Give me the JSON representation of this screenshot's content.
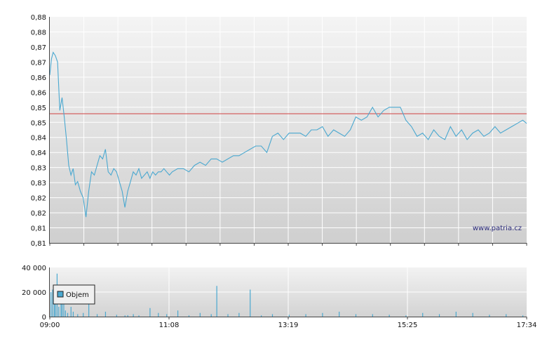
{
  "watermark": "www.patria.cz",
  "chart_data": [
    {
      "type": "line",
      "title": "",
      "xlabel": "",
      "ylabel": "",
      "ylim": [
        0.81,
        0.88
      ],
      "y_tick_labels": [
        "0,88",
        "0,88",
        "0,87",
        "0,87",
        "0,86",
        "0,86",
        "0,85",
        "0,85",
        "0,84",
        "0,84",
        "0,83",
        "0,83",
        "0,82",
        "0,82",
        "0,81",
        "0,81"
      ],
      "reference_line": {
        "value": 0.85,
        "color": "#d04040"
      },
      "grid": true,
      "series": [
        {
          "color": "#4aa8d0",
          "x": [
            0,
            0.03,
            0.06,
            0.1,
            0.14,
            0.18,
            0.22,
            0.26,
            0.3,
            0.34,
            0.38,
            0.42,
            0.46,
            0.5,
            0.55,
            0.6,
            0.65,
            0.7,
            0.75,
            0.8,
            0.85,
            0.9,
            0.95,
            1.0,
            1.05,
            1.1,
            1.15,
            1.2,
            1.25,
            1.3,
            1.35,
            1.4,
            1.45,
            1.5,
            1.55,
            1.6,
            1.65,
            1.7,
            1.75,
            1.8,
            1.85,
            1.9,
            1.95,
            2.0,
            2.05,
            2.1,
            2.15,
            2.2,
            2.3,
            2.4,
            2.5,
            2.6,
            2.7,
            2.8,
            2.9,
            3.0,
            3.1,
            3.2,
            3.3,
            3.4,
            3.5,
            3.6,
            3.7,
            3.8,
            3.9,
            4.0,
            4.1,
            4.2,
            4.3,
            4.4,
            4.5,
            4.6,
            4.7,
            4.8,
            4.9,
            5.0,
            5.1,
            5.2,
            5.3,
            5.4,
            5.5,
            5.6,
            5.7,
            5.8,
            5.9,
            6.0,
            6.1,
            6.2,
            6.3,
            6.4,
            6.5,
            6.6,
            6.7,
            6.8,
            6.9,
            7.0,
            7.1,
            7.2,
            7.3,
            7.4,
            7.5,
            7.6,
            7.7,
            7.8,
            7.9,
            8.0,
            8.1,
            8.2,
            8.3,
            8.4,
            8.5,
            8.57
          ],
          "y": [
            0.862,
            0.867,
            0.869,
            0.868,
            0.866,
            0.851,
            0.855,
            0.849,
            0.842,
            0.834,
            0.831,
            0.833,
            0.828,
            0.829,
            0.826,
            0.824,
            0.818,
            0.826,
            0.832,
            0.831,
            0.834,
            0.837,
            0.836,
            0.839,
            0.832,
            0.831,
            0.833,
            0.832,
            0.829,
            0.826,
            0.821,
            0.826,
            0.829,
            0.832,
            0.831,
            0.833,
            0.83,
            0.831,
            0.832,
            0.83,
            0.832,
            0.831,
            0.832,
            0.832,
            0.833,
            0.832,
            0.831,
            0.832,
            0.833,
            0.833,
            0.832,
            0.834,
            0.835,
            0.834,
            0.836,
            0.836,
            0.835,
            0.836,
            0.837,
            0.837,
            0.838,
            0.839,
            0.84,
            0.84,
            0.838,
            0.843,
            0.844,
            0.842,
            0.844,
            0.844,
            0.844,
            0.843,
            0.845,
            0.845,
            0.846,
            0.843,
            0.845,
            0.844,
            0.843,
            0.845,
            0.849,
            0.848,
            0.849,
            0.852,
            0.849,
            0.851,
            0.852,
            0.852,
            0.852,
            0.848,
            0.846,
            0.843,
            0.844,
            0.842,
            0.845,
            0.843,
            0.842,
            0.846,
            0.843,
            0.845,
            0.842,
            0.844,
            0.845,
            0.843,
            0.844,
            0.846,
            0.844,
            0.845,
            0.846,
            0.847,
            0.848,
            0.847
          ]
        }
      ]
    },
    {
      "type": "bar",
      "title": "",
      "xlabel": "",
      "ylabel": "",
      "ylim": [
        0,
        40000
      ],
      "y_tick_labels": [
        "40 000",
        "20 000",
        "0"
      ],
      "x_tick_labels": [
        "09:00",
        "11:08",
        "13:19",
        "15:25",
        "17:34"
      ],
      "grid": true,
      "legend": "top-left",
      "series": [
        {
          "name": "Objem",
          "color": "#4aa8d0",
          "x": [
            0.02,
            0.05,
            0.08,
            0.1,
            0.13,
            0.16,
            0.2,
            0.22,
            0.25,
            0.28,
            0.32,
            0.38,
            0.42,
            0.5,
            0.6,
            0.7,
            0.85,
            1.0,
            1.2,
            1.35,
            1.4,
            1.5,
            1.6,
            1.8,
            1.95,
            2.1,
            2.3,
            2.5,
            2.7,
            2.9,
            3.0,
            3.2,
            3.4,
            3.6,
            3.8,
            4.0,
            4.3,
            4.6,
            4.9,
            5.2,
            5.5,
            5.8,
            6.1,
            6.4,
            6.7,
            7.0,
            7.3,
            7.6,
            7.9,
            8.2,
            8.5
          ],
          "values": [
            20000,
            22000,
            10000,
            15000,
            35000,
            8000,
            12000,
            22000,
            18000,
            5000,
            3000,
            8000,
            4000,
            2000,
            3000,
            25000,
            2000,
            4000,
            1500,
            1000,
            1200,
            2000,
            1000,
            7000,
            3000,
            2000,
            5000,
            1000,
            3000,
            2000,
            25000,
            2000,
            3000,
            22000,
            1000,
            2000,
            1500,
            2000,
            3000,
            4000,
            2000,
            2000,
            1500,
            1000,
            3000,
            2000,
            4000,
            3000,
            1500,
            2000,
            1000
          ]
        }
      ]
    }
  ]
}
